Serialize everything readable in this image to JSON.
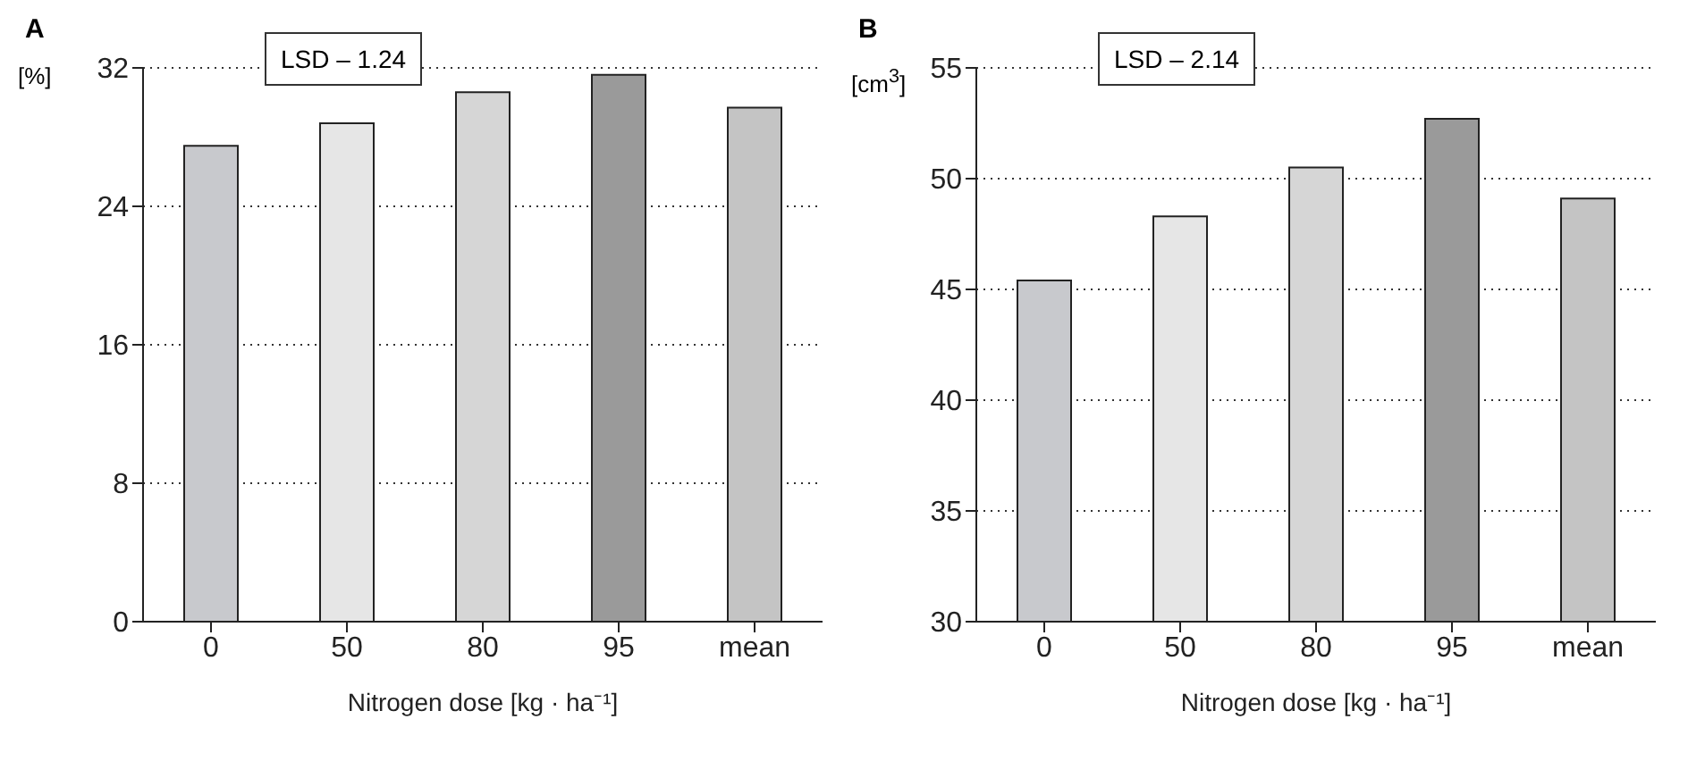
{
  "chart_data": [
    {
      "type": "bar",
      "title": "A",
      "ylabel": "[%]",
      "xlabel": "Nitrogen dose [kg · ha⁻¹]",
      "annotations": [
        "LSD – 1.24"
      ],
      "categories": [
        "0",
        "50",
        "80",
        "95",
        "mean"
      ],
      "values": [
        27.5,
        28.8,
        30.6,
        31.6,
        29.7
      ],
      "colors": [
        "#c8c9cd",
        "#e6e6e6",
        "#d6d6d6",
        "#9a9a9a",
        "#c4c4c4"
      ],
      "ylim": [
        0,
        32
      ],
      "yticks": [
        0,
        8,
        16,
        24,
        32
      ],
      "grid": "y"
    },
    {
      "type": "bar",
      "title": "B",
      "ylabel": "[cm$^{3}$]",
      "xlabel": "Nitrogen dose [kg · ha⁻¹]",
      "annotations": [
        "LSD – 2.14"
      ],
      "categories": [
        "0",
        "50",
        "80",
        "95",
        "mean"
      ],
      "values": [
        45.4,
        48.3,
        50.5,
        52.7,
        49.1
      ],
      "colors": [
        "#c8c9cd",
        "#e6e6e6",
        "#d6d6d6",
        "#9a9a9a",
        "#c4c4c4"
      ],
      "ylim": [
        30,
        55
      ],
      "yticks": [
        30,
        35,
        40,
        45,
        50,
        55
      ],
      "grid": "y"
    }
  ]
}
